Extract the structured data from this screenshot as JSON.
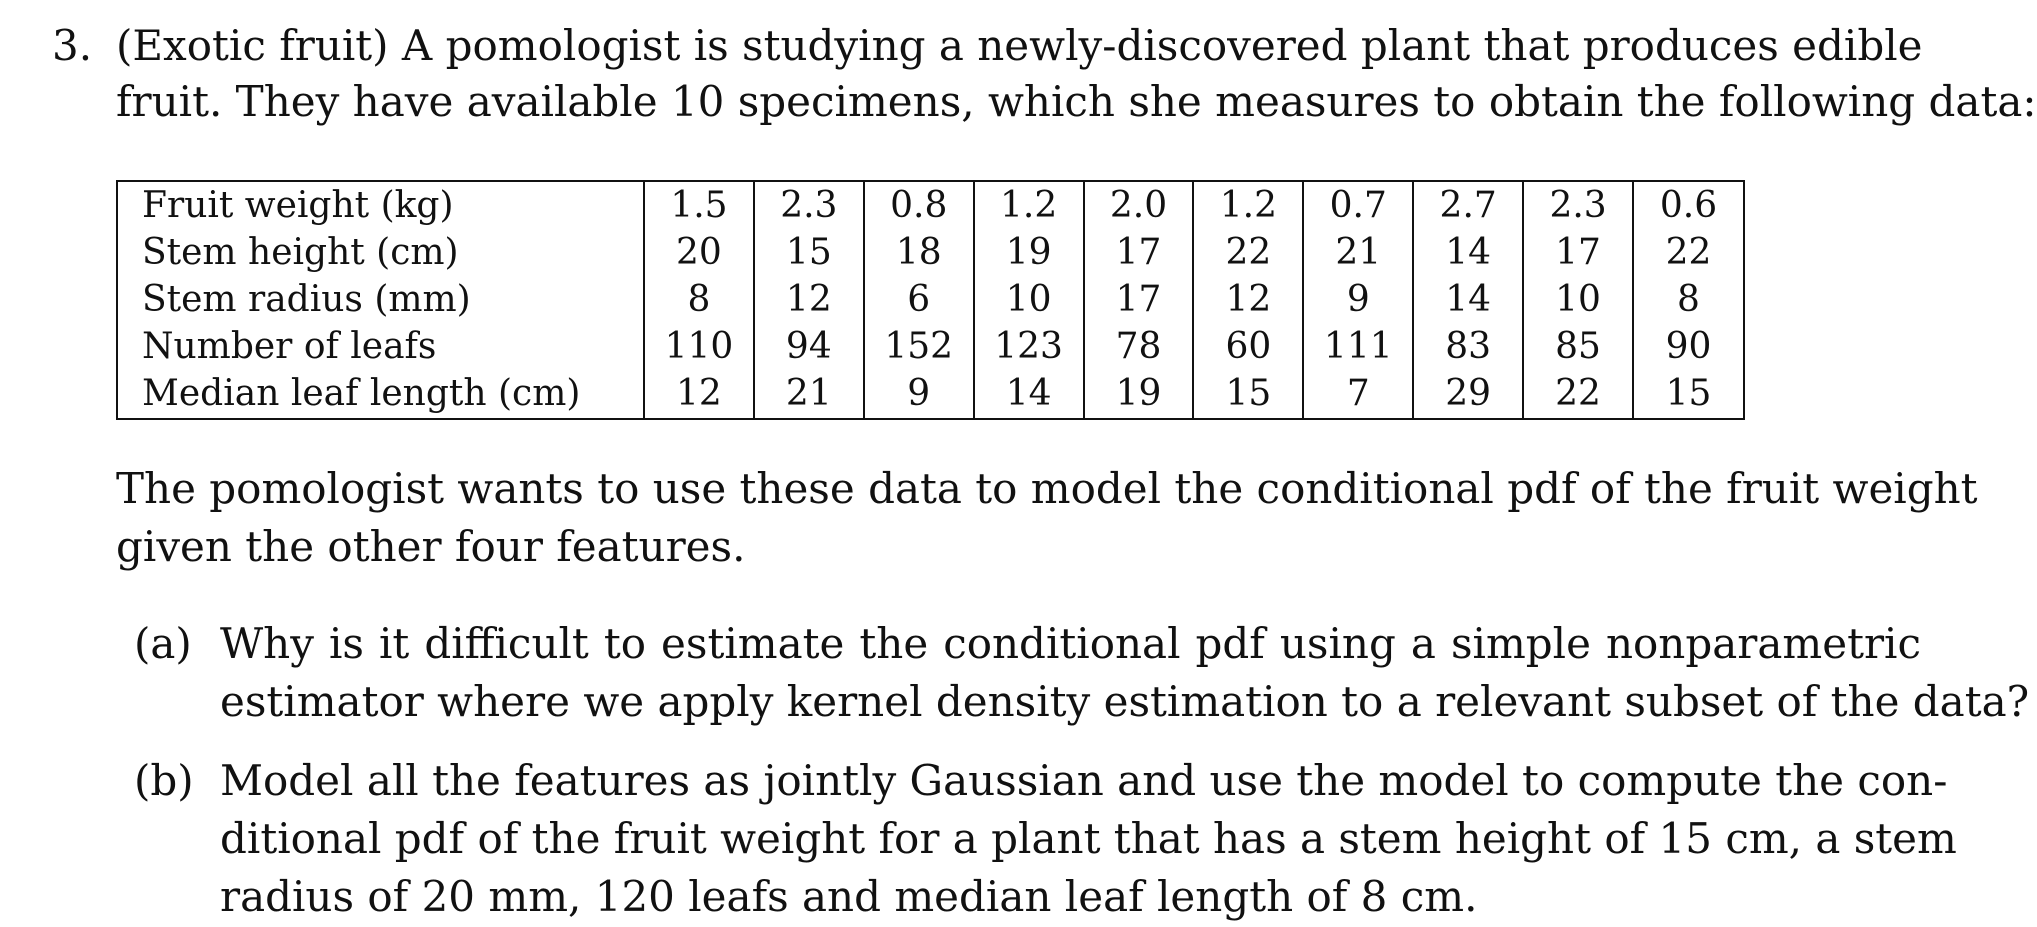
{
  "problem": {
    "number": "3.",
    "intro_lines": [
      "(Exotic fruit) A pomologist is studying a newly-discovered plant that produces edible",
      "fruit. They have available 10 specimens, which she measures to obtain the following data:"
    ]
  },
  "table": {
    "rows": [
      {
        "label": "Fruit weight (kg)",
        "values": [
          "1.5",
          "2.3",
          "0.8",
          "1.2",
          "2.0",
          "1.2",
          "0.7",
          "2.7",
          "2.3",
          "0.6"
        ]
      },
      {
        "label": "Stem height (cm)",
        "values": [
          "20",
          "15",
          "18",
          "19",
          "17",
          "22",
          "21",
          "14",
          "17",
          "22"
        ]
      },
      {
        "label": "Stem radius (mm)",
        "values": [
          "8",
          "12",
          "6",
          "10",
          "17",
          "12",
          "9",
          "14",
          "10",
          "8"
        ]
      },
      {
        "label": "Number of leafs",
        "values": [
          "110",
          "94",
          "152",
          "123",
          "78",
          "60",
          "111",
          "83",
          "85",
          "90"
        ]
      },
      {
        "label": "Median leaf length (cm)",
        "values": [
          "12",
          "21",
          "9",
          "14",
          "19",
          "15",
          "7",
          "29",
          "22",
          "15"
        ]
      }
    ]
  },
  "paragraph_lines": [
    "The pomologist wants to use these data to model the conditional pdf of the fruit weight",
    "given the other four features."
  ],
  "parts": [
    {
      "label": "(a)",
      "lines": [
        "Why is it difficult to estimate the conditional pdf using a simple nonparametric",
        "estimator where we apply kernel density estimation to a relevant subset of the data?"
      ]
    },
    {
      "label": "(b)",
      "lines": [
        "Model all the features as jointly Gaussian and use the model to compute the con-",
        "ditional pdf of the fruit weight for a plant that has a stem height of 15 cm, a stem",
        "radius of 20 mm, 120 leafs and median leaf length of 8 cm."
      ]
    }
  ]
}
